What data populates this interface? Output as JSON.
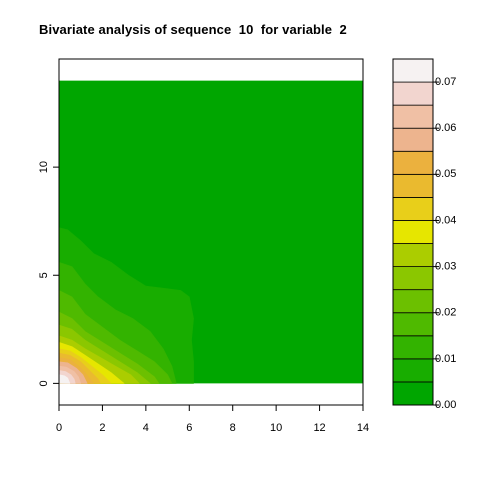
{
  "chart_data": {
    "type": "heatmap",
    "title": "Bivariate analysis of sequence  10  for variable  2",
    "xlabel": "",
    "ylabel": "",
    "xlim": [
      0,
      14
    ],
    "ylim": [
      -1,
      15
    ],
    "x_ticks": [
      "0",
      "2",
      "4",
      "6",
      "8",
      "10",
      "12",
      "14"
    ],
    "y_ticks": [
      "0",
      "5",
      "10"
    ],
    "y_tick_values": [
      0,
      5,
      10
    ],
    "x_tick_values": [
      0,
      2,
      4,
      6,
      8,
      10,
      12,
      14
    ],
    "data_extent": {
      "x": [
        0,
        14
      ],
      "y": [
        0,
        14
      ]
    },
    "density_peak": {
      "x": 0.3,
      "y": 0.3,
      "value": 0.075
    },
    "background_level": 0.0,
    "legend": {
      "placement": "right",
      "tick_labels": [
        "0.00",
        "0.01",
        "0.02",
        "0.03",
        "0.04",
        "0.05",
        "0.06",
        "0.07"
      ],
      "tick_values": [
        0.0,
        0.01,
        0.02,
        0.03,
        0.04,
        0.05,
        0.06,
        0.07
      ],
      "range": [
        0.0,
        0.075
      ],
      "levels": [
        {
          "from": 0.0,
          "to": 0.005,
          "color": "#00A600"
        },
        {
          "from": 0.005,
          "to": 0.01,
          "color": "#18AD00"
        },
        {
          "from": 0.01,
          "to": 0.015,
          "color": "#33B300"
        },
        {
          "from": 0.015,
          "to": 0.02,
          "color": "#4FBA00"
        },
        {
          "from": 0.02,
          "to": 0.025,
          "color": "#6CC000"
        },
        {
          "from": 0.025,
          "to": 0.03,
          "color": "#8BC700"
        },
        {
          "from": 0.03,
          "to": 0.035,
          "color": "#ABCD00"
        },
        {
          "from": 0.035,
          "to": 0.04,
          "color": "#E6E600"
        },
        {
          "from": 0.04,
          "to": 0.045,
          "color": "#E8CF1A"
        },
        {
          "from": 0.045,
          "to": 0.05,
          "color": "#EABA2F"
        },
        {
          "from": 0.05,
          "to": 0.055,
          "color": "#EBB13E"
        },
        {
          "from": 0.055,
          "to": 0.06,
          "color": "#EDB48E"
        },
        {
          "from": 0.06,
          "to": 0.065,
          "color": "#F0C0A5"
        },
        {
          "from": 0.065,
          "to": 0.07,
          "color": "#F2D5CF"
        },
        {
          "from": 0.07,
          "to": 0.075,
          "color": "#F6F2F2"
        }
      ]
    }
  }
}
